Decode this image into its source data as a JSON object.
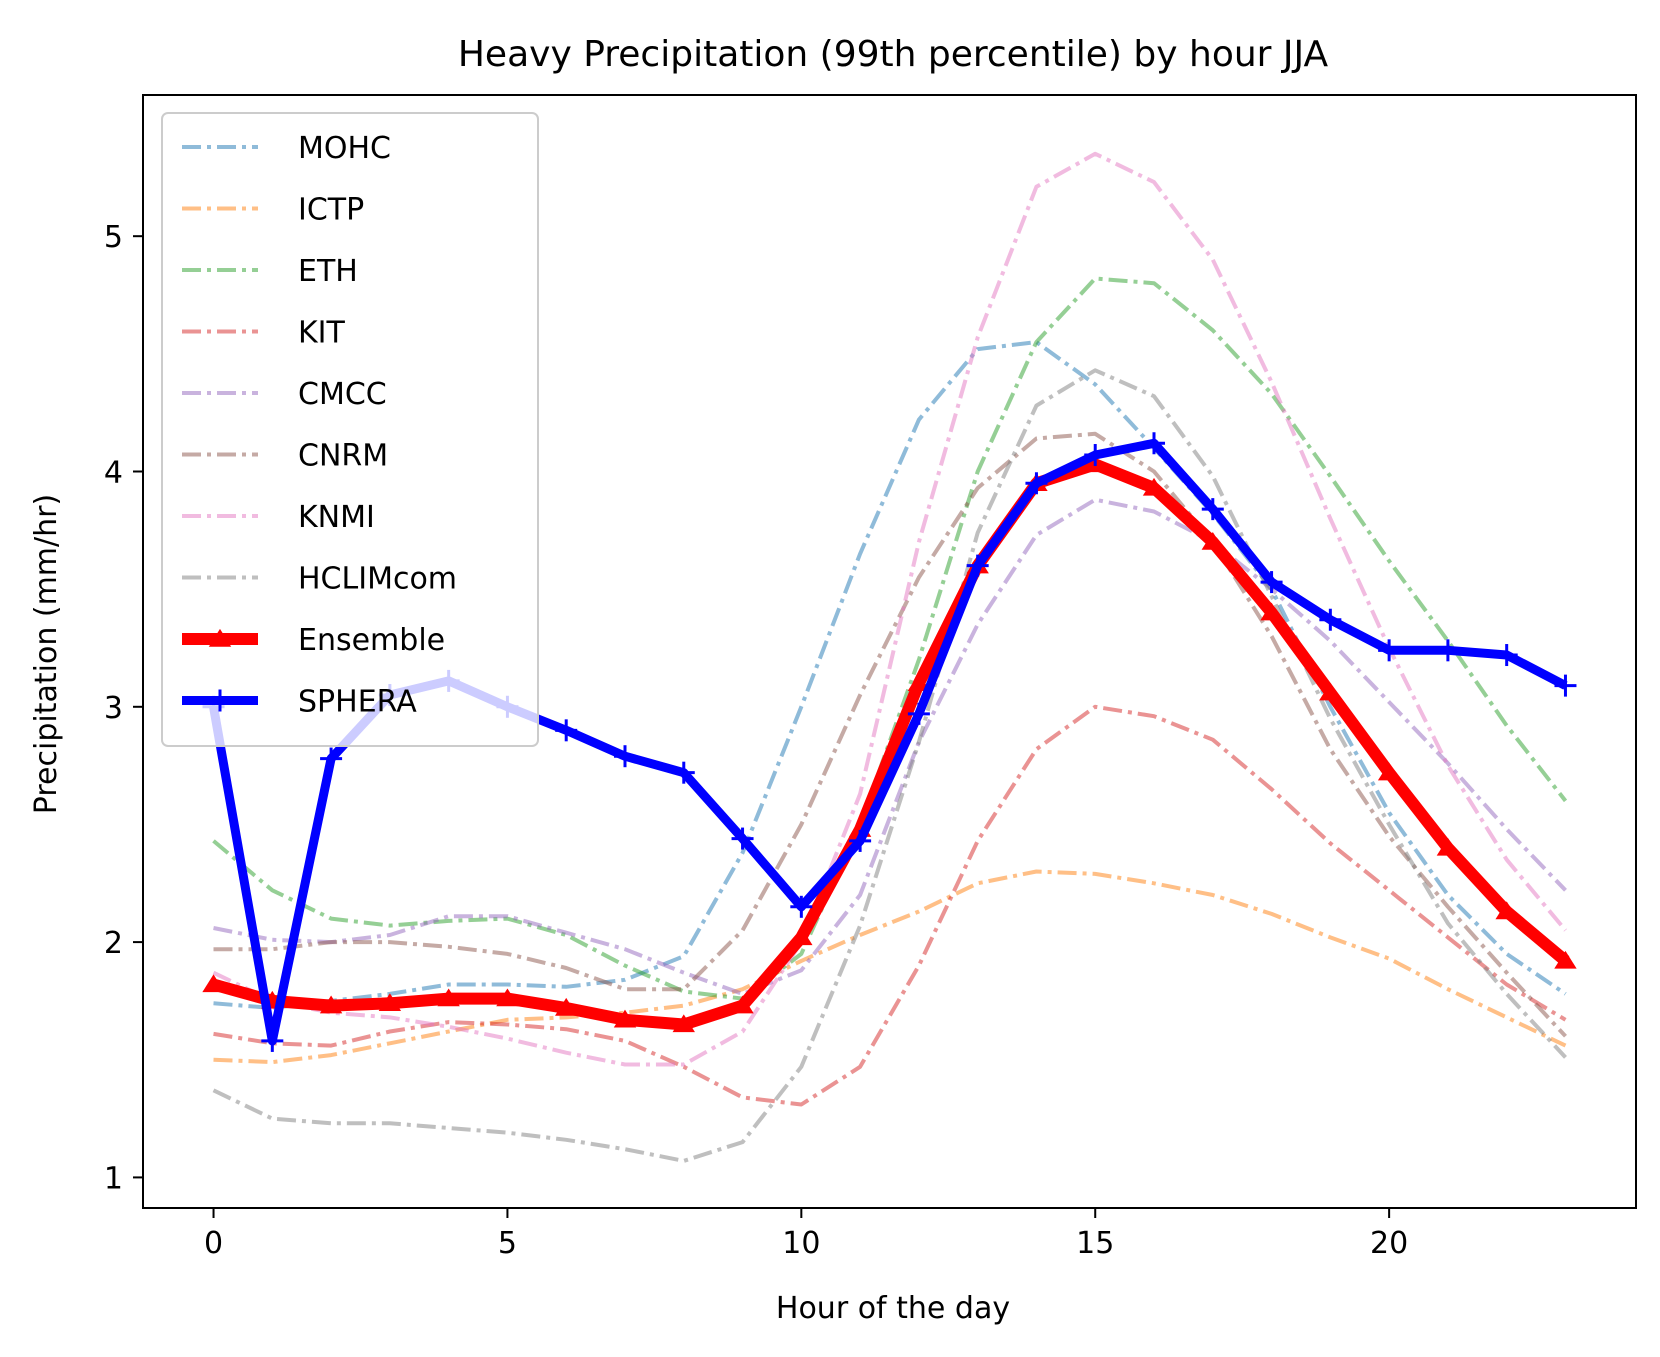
{
  "chart_data": {
    "type": "line",
    "title": "Heavy Precipitation (99th percentile) by hour JJA",
    "xlabel": "Hour of the day",
    "ylabel": "Precipitation (mm/hr)",
    "xlim": [
      -1.2,
      24.2
    ],
    "ylim": [
      0.87,
      5.6
    ],
    "xticks": [
      0,
      5,
      10,
      15,
      20
    ],
    "yticks": [
      1,
      2,
      3,
      4,
      5
    ],
    "grid": false,
    "legend_position": "top-left",
    "x": [
      0,
      1,
      2,
      3,
      4,
      5,
      6,
      7,
      8,
      9,
      10,
      11,
      12,
      13,
      14,
      15,
      16,
      17,
      18,
      19,
      20,
      21,
      22,
      23
    ],
    "series": [
      {
        "name": "MOHC",
        "color": "#1f77b4",
        "style": "dashdot",
        "values": [
          1.74,
          1.72,
          1.75,
          1.78,
          1.82,
          1.82,
          1.81,
          1.84,
          1.94,
          2.38,
          3.0,
          3.65,
          4.22,
          4.52,
          4.55,
          4.37,
          4.1,
          3.82,
          3.5,
          3.0,
          2.55,
          2.2,
          1.95,
          1.78
        ]
      },
      {
        "name": "ICTP",
        "color": "#ff7f0e",
        "style": "dashdot",
        "values": [
          1.5,
          1.49,
          1.52,
          1.57,
          1.62,
          1.67,
          1.68,
          1.7,
          1.73,
          1.8,
          1.92,
          2.03,
          2.13,
          2.25,
          2.3,
          2.29,
          2.25,
          2.2,
          2.12,
          2.02,
          1.93,
          1.8,
          1.68,
          1.56
        ]
      },
      {
        "name": "ETH",
        "color": "#2ca02c",
        "style": "dashdot",
        "values": [
          2.43,
          2.22,
          2.1,
          2.07,
          2.09,
          2.1,
          2.03,
          1.9,
          1.79,
          1.76,
          1.95,
          2.5,
          3.2,
          4.0,
          4.55,
          4.82,
          4.8,
          4.6,
          4.33,
          3.98,
          3.62,
          3.28,
          2.92,
          2.6
        ]
      },
      {
        "name": "KIT",
        "color": "#d62728",
        "style": "dashdot",
        "values": [
          1.61,
          1.57,
          1.56,
          1.62,
          1.66,
          1.65,
          1.63,
          1.58,
          1.47,
          1.34,
          1.31,
          1.47,
          1.9,
          2.43,
          2.82,
          3.0,
          2.96,
          2.86,
          2.65,
          2.42,
          2.22,
          2.02,
          1.82,
          1.67
        ]
      },
      {
        "name": "CMCC",
        "color": "#9467bd",
        "style": "dashdot",
        "values": [
          2.06,
          2.01,
          2.0,
          2.03,
          2.11,
          2.11,
          2.04,
          1.97,
          1.87,
          1.78,
          1.88,
          2.2,
          2.85,
          3.35,
          3.73,
          3.88,
          3.83,
          3.7,
          3.5,
          3.28,
          3.02,
          2.76,
          2.48,
          2.22
        ]
      },
      {
        "name": "CNRM",
        "color": "#8c564b",
        "style": "dashdot",
        "values": [
          1.97,
          1.97,
          2.0,
          2.0,
          1.98,
          1.95,
          1.89,
          1.8,
          1.8,
          2.05,
          2.5,
          3.05,
          3.55,
          3.93,
          4.14,
          4.16,
          4.0,
          3.7,
          3.3,
          2.82,
          2.45,
          2.15,
          1.87,
          1.6
        ]
      },
      {
        "name": "KNMI",
        "color": "#e377c2",
        "style": "dashdot",
        "values": [
          1.87,
          1.75,
          1.7,
          1.68,
          1.64,
          1.59,
          1.53,
          1.48,
          1.48,
          1.62,
          2.0,
          2.63,
          3.7,
          4.57,
          5.21,
          5.35,
          5.23,
          4.9,
          4.38,
          3.8,
          3.25,
          2.75,
          2.35,
          2.05
        ]
      },
      {
        "name": "HCLIMcom",
        "color": "#7f7f7f",
        "style": "dashdot",
        "values": [
          1.37,
          1.25,
          1.23,
          1.23,
          1.21,
          1.19,
          1.16,
          1.12,
          1.07,
          1.15,
          1.47,
          2.07,
          2.85,
          3.74,
          4.28,
          4.43,
          4.32,
          3.98,
          3.47,
          2.95,
          2.5,
          2.08,
          1.78,
          1.51
        ]
      },
      {
        "name": "Ensemble",
        "color": "#ff0000",
        "style": "solid",
        "marker": "triangle",
        "values": [
          1.82,
          1.75,
          1.73,
          1.74,
          1.76,
          1.76,
          1.72,
          1.67,
          1.65,
          1.73,
          2.02,
          2.48,
          3.1,
          3.6,
          3.95,
          4.03,
          3.93,
          3.7,
          3.4,
          3.06,
          2.72,
          2.4,
          2.13,
          1.92
        ]
      },
      {
        "name": "SPHERA",
        "color": "#0000ff",
        "style": "solid",
        "marker": "plus",
        "values": [
          3.0,
          1.58,
          2.78,
          3.05,
          3.11,
          3.0,
          2.9,
          2.79,
          2.72,
          2.44,
          2.15,
          2.43,
          2.97,
          3.6,
          3.95,
          4.07,
          4.12,
          3.84,
          3.53,
          3.37,
          3.24,
          3.24,
          3.22,
          3.09
        ]
      }
    ]
  }
}
